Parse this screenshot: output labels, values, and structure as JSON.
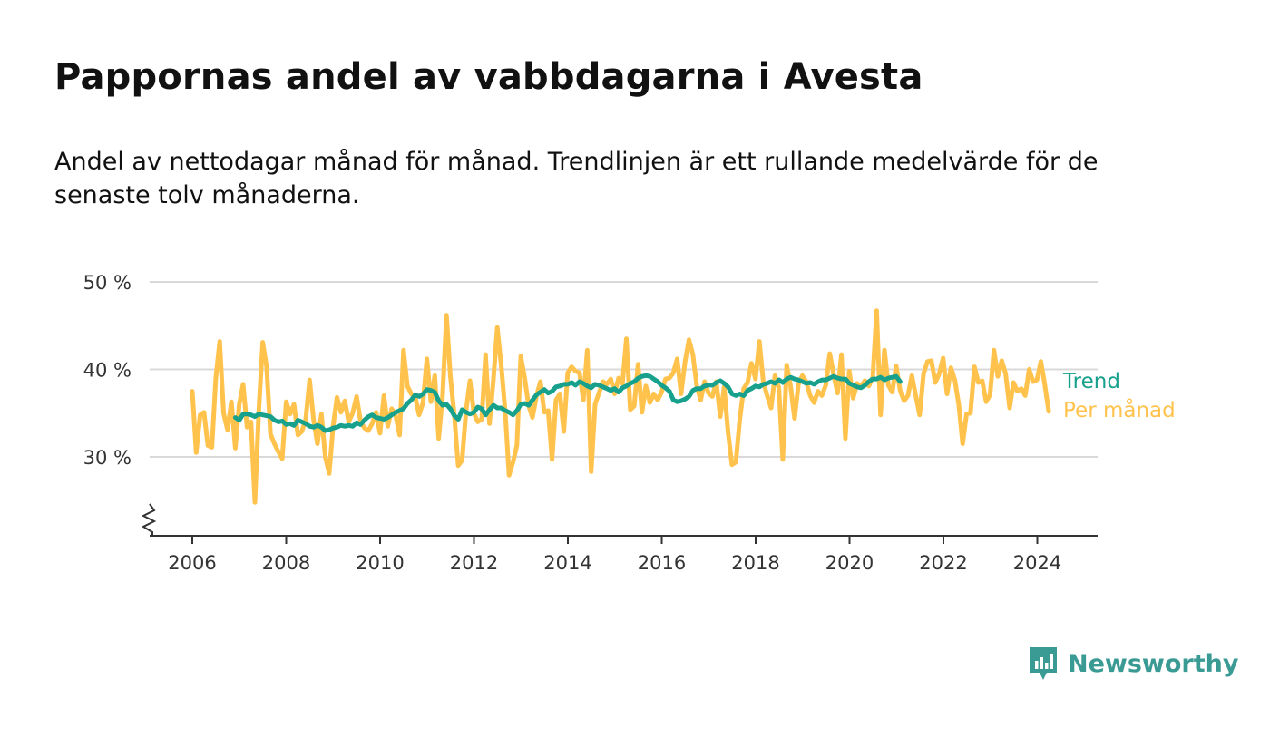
{
  "title": "Pappornas andel av vabbdagarna i Avesta",
  "subtitle": "Andel av nettodagar månad för månad. Trendlinjen är ett rullande medelvärde för de senaste tolv månaderna.",
  "brand": {
    "name": "Newsworthy",
    "color": "#3a9a94"
  },
  "chart_data": {
    "type": "line",
    "title": "Pappornas andel av vabbdagarna i Avesta",
    "xlabel": "",
    "ylabel": "",
    "x_ticks": [
      "2006",
      "2008",
      "2010",
      "2012",
      "2014",
      "2016",
      "2018",
      "2020",
      "2022",
      "2024"
    ],
    "y_ticks": [
      "30 %",
      "40 %",
      "50 %"
    ],
    "ylim": [
      21,
      50
    ],
    "xlim": [
      2005.1,
      2025.3
    ],
    "grid": true,
    "broken_y_axis": true,
    "series": [
      {
        "name": "Per månad",
        "color": "#ffc34d",
        "start_year": 2006.0,
        "step": 0.0833,
        "values": [
          37.5,
          30.5,
          34.8,
          35.1,
          31.3,
          31.1,
          39.0,
          43.2,
          35.0,
          33.1,
          36.3,
          31.0,
          36.0,
          38.3,
          33.4,
          34.0,
          24.8,
          35.3,
          43.1,
          40.3,
          32.6,
          31.5,
          30.6,
          29.8,
          36.3,
          34.9,
          36.0,
          32.5,
          32.9,
          34.3,
          38.8,
          34.3,
          31.5,
          34.9,
          30.0,
          28.1,
          33.5,
          36.8,
          35.1,
          36.4,
          34.0,
          35.0,
          36.9,
          34.1,
          33.3,
          33.0,
          33.8,
          35.1,
          32.7,
          37.0,
          33.5,
          35.5,
          34.7,
          32.5,
          42.2,
          38.1,
          37.2,
          36.9,
          34.8,
          36.2,
          41.2,
          36.3,
          39.3,
          32.1,
          37.0,
          46.2,
          39.2,
          34.8,
          29.0,
          29.6,
          35.3,
          38.7,
          35.0,
          34.0,
          34.3,
          41.7,
          33.8,
          38.8,
          44.8,
          40.4,
          35.2,
          27.9,
          29.4,
          31.3,
          41.5,
          39.0,
          35.9,
          34.5,
          36.9,
          38.6,
          35.1,
          35.3,
          29.7,
          36.5,
          37.2,
          32.9,
          39.6,
          40.3,
          39.8,
          39.6,
          36.5,
          42.2,
          28.3,
          36.0,
          37.3,
          38.6,
          38.3,
          38.9,
          37.2,
          39.0,
          38.4,
          43.5,
          35.4,
          35.8,
          40.6,
          35.1,
          38.1,
          36.2,
          37.2,
          36.5,
          37.4,
          38.9,
          39.0,
          39.6,
          41.2,
          37.2,
          40.9,
          43.4,
          41.7,
          38.1,
          36.5,
          38.6,
          37.3,
          36.9,
          38.6,
          34.6,
          38.0,
          32.8,
          29.1,
          29.4,
          34.3,
          37.8,
          38.5,
          40.7,
          38.9,
          43.2,
          38.6,
          37.0,
          35.6,
          39.3,
          37.9,
          29.7,
          40.5,
          38.1,
          34.4,
          38.3,
          39.3,
          38.6,
          37.0,
          36.2,
          37.5,
          37.0,
          38.2,
          41.8,
          39.4,
          37.3,
          41.7,
          32.1,
          39.8,
          36.7,
          38.4,
          38.1,
          38.7,
          38.1,
          39.1,
          46.7,
          34.8,
          42.2,
          38.2,
          37.4,
          40.4,
          37.6,
          36.4,
          37.0,
          39.3,
          37.0,
          34.8,
          39.5,
          40.9,
          41.0,
          38.5,
          39.5,
          41.3,
          37.2,
          40.2,
          38.8,
          36.0,
          31.5,
          34.9,
          35.0,
          40.3,
          38.5,
          38.7,
          36.3,
          37.1,
          42.2,
          39.2,
          41.0,
          39.5,
          35.6,
          38.5,
          37.5,
          37.8,
          37.0,
          40.0,
          38.6,
          38.8,
          40.9,
          38.3,
          35.2
        ]
      },
      {
        "name": "Trend",
        "color": "#17a18c",
        "start_year": 2006.917,
        "step": 0.0833,
        "values": [
          34.5,
          34.2,
          34.9,
          34.9,
          34.8,
          34.6,
          34.9,
          34.8,
          34.7,
          34.6,
          34.2,
          34.0,
          34.1,
          33.7,
          33.8,
          33.6,
          34.2,
          34.0,
          33.8,
          33.5,
          33.4,
          33.6,
          33.4,
          33.0,
          33.1,
          33.3,
          33.4,
          33.6,
          33.5,
          33.6,
          33.5,
          33.9,
          33.7,
          34.2,
          34.6,
          34.8,
          34.5,
          34.4,
          34.3,
          34.5,
          34.8,
          35.1,
          35.3,
          35.5,
          36.1,
          36.5,
          37.1,
          36.9,
          37.2,
          37.7,
          37.6,
          37.4,
          36.4,
          35.9,
          36.0,
          35.5,
          34.7,
          34.3,
          35.4,
          35.1,
          34.9,
          35.1,
          35.7,
          35.5,
          34.8,
          35.4,
          35.9,
          35.6,
          35.6,
          35.3,
          35.1,
          34.8,
          35.3,
          36.0,
          36.1,
          35.9,
          36.5,
          37.1,
          37.4,
          37.7,
          37.3,
          37.5,
          38.0,
          38.1,
          38.3,
          38.3,
          38.5,
          38.2,
          38.6,
          38.4,
          38.1,
          37.9,
          38.3,
          38.2,
          38.0,
          37.8,
          37.6,
          37.8,
          37.4,
          37.9,
          38.1,
          38.4,
          38.6,
          39.0,
          39.2,
          39.3,
          39.2,
          38.9,
          38.6,
          38.2,
          37.9,
          37.5,
          36.5,
          36.3,
          36.4,
          36.6,
          36.9,
          37.6,
          37.8,
          37.8,
          38.1,
          38.2,
          38.2,
          38.5,
          38.7,
          38.4,
          38.0,
          37.2,
          37.0,
          37.2,
          37.0,
          37.6,
          37.8,
          38.1,
          38.0,
          38.3,
          38.4,
          38.6,
          38.4,
          38.8,
          38.5,
          38.9,
          39.1,
          38.9,
          38.8,
          38.6,
          38.4,
          38.5,
          38.3,
          38.6,
          38.8,
          38.8,
          39.0,
          39.2,
          39.0,
          38.9,
          38.9,
          38.4,
          38.2,
          38.0,
          37.9,
          38.2,
          38.6,
          38.9,
          38.9,
          39.1,
          38.8,
          39.0,
          39.1,
          39.2,
          38.6
        ]
      }
    ]
  }
}
